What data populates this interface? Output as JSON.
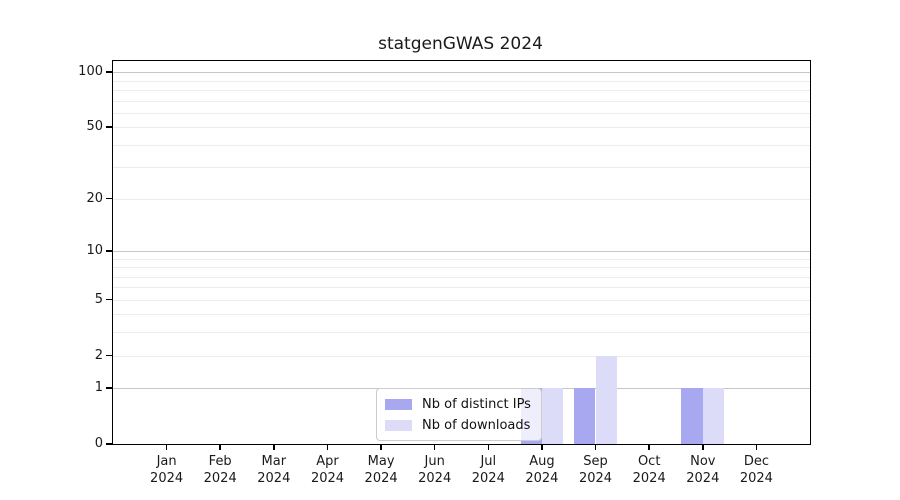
{
  "title": "statgenGWAS 2024",
  "chart_data": {
    "type": "bar",
    "title": "statgenGWAS 2024",
    "x_tick_months": [
      "Jan",
      "Feb",
      "Mar",
      "Apr",
      "May",
      "Jun",
      "Jul",
      "Aug",
      "Sep",
      "Oct",
      "Nov",
      "Dec"
    ],
    "x_tick_year": "2024",
    "series": [
      {
        "name": "Nb of distinct IPs",
        "color": "#a8a8f0",
        "values": [
          0,
          0,
          0,
          0,
          0,
          0,
          0,
          1,
          1,
          0,
          1,
          0
        ]
      },
      {
        "name": "Nb of downloads",
        "color": "#dcdcf8",
        "values": [
          0,
          0,
          0,
          0,
          0,
          0,
          0,
          1,
          2,
          0,
          1,
          0
        ]
      }
    ],
    "y_ticks": [
      0,
      1,
      2,
      5,
      10,
      20,
      50,
      100
    ],
    "y_scale": "log1p",
    "y_max": 115,
    "grid": {
      "minor_values": [
        2,
        3,
        4,
        5,
        6,
        7,
        8,
        9,
        20,
        30,
        40,
        50,
        60,
        70,
        80,
        90
      ],
      "major_values": [
        1,
        10,
        100
      ],
      "minor_color": "#ececec",
      "major_color": "#c6c6c6"
    },
    "legend_position": "bottom-center"
  }
}
